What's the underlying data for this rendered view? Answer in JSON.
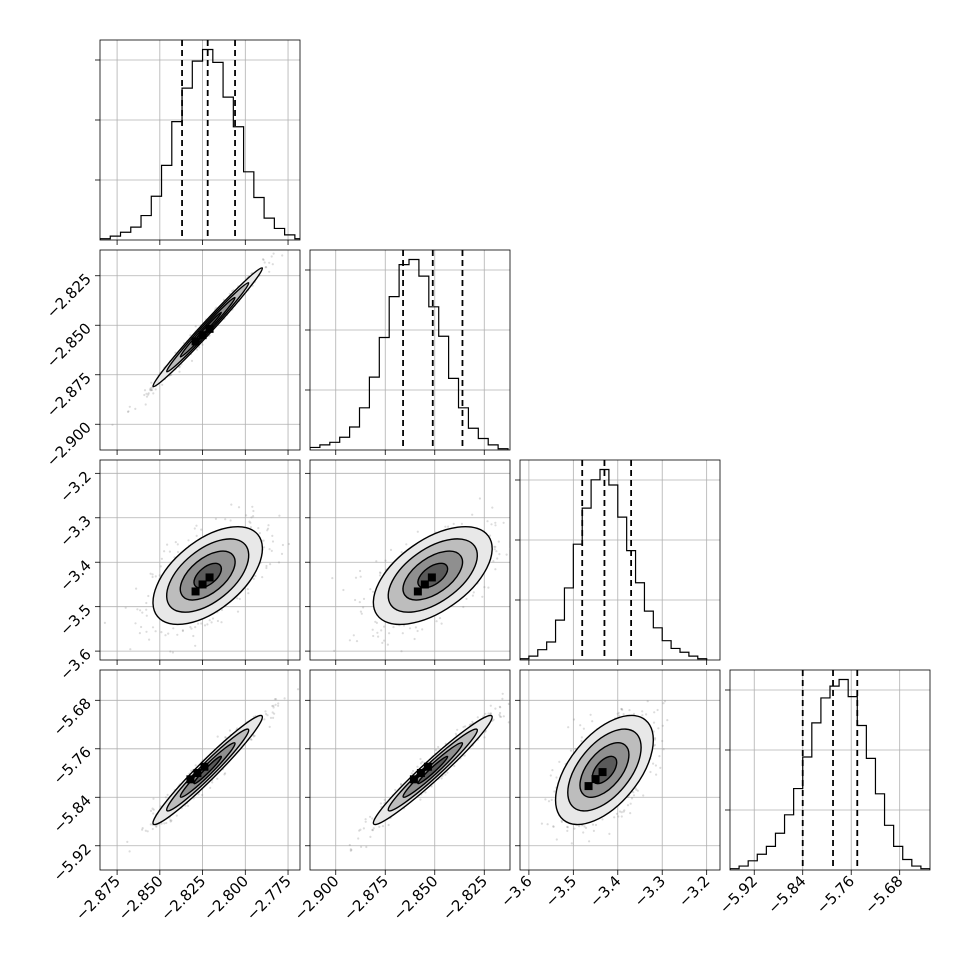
{
  "chart_data": {
    "type": "corner",
    "parameters": 4,
    "colors": {
      "line": "#000000",
      "grid": "#b0b0b0",
      "background": "#ffffff",
      "samples": "#808080"
    },
    "grid": true,
    "axes": [
      {
        "ticks": [
          "−2.875",
          "−2.850",
          "−2.825",
          "−2.800",
          "−2.775"
        ],
        "tick_values": [
          -2.875,
          -2.85,
          -2.825,
          -2.8,
          -2.775
        ],
        "range": [
          -2.885,
          -2.768
        ]
      },
      {
        "ticks": [
          "−2.900",
          "−2.875",
          "−2.850",
          "−2.825"
        ],
        "tick_values": [
          -2.9,
          -2.875,
          -2.85,
          -2.825
        ],
        "range": [
          -2.913,
          -2.812
        ]
      },
      {
        "ticks": [
          "−3.6",
          "−3.5",
          "−3.4",
          "−3.3",
          "−3.2"
        ],
        "tick_values": [
          -3.6,
          -3.5,
          -3.4,
          -3.3,
          -3.2
        ],
        "range": [
          -3.62,
          -3.17
        ]
      },
      {
        "ticks": [
          "−5.92",
          "−5.84",
          "−5.76",
          "−5.68"
        ],
        "tick_values": [
          -5.92,
          -5.84,
          -5.76,
          -5.68
        ],
        "range": [
          -5.96,
          -5.63
        ]
      }
    ],
    "histograms": [
      {
        "param": 0,
        "quantiles": [
          -2.837,
          -2.822,
          -2.806
        ],
        "bins": [
          -2.885,
          -2.879,
          -2.873,
          -2.867,
          -2.861,
          -2.855,
          -2.849,
          -2.843,
          -2.837,
          -2.831,
          -2.825,
          -2.819,
          -2.813,
          -2.807,
          -2.801,
          -2.795,
          -2.789,
          -2.783,
          -2.777,
          -2.771
        ],
        "counts": [
          1,
          3,
          6,
          10,
          19,
          34,
          58,
          92,
          118,
          139,
          148,
          138,
          111,
          88,
          53,
          33,
          17,
          9,
          4,
          1
        ]
      },
      {
        "param": 1,
        "quantiles": [
          -2.866,
          -2.851,
          -2.836
        ],
        "bins": [
          -2.913,
          -2.908,
          -2.903,
          -2.898,
          -2.893,
          -2.888,
          -2.883,
          -2.878,
          -2.873,
          -2.868,
          -2.863,
          -2.858,
          -2.853,
          -2.848,
          -2.843,
          -2.838,
          -2.833,
          -2.828,
          -2.823,
          -2.818
        ],
        "counts": [
          2,
          4,
          6,
          10,
          18,
          33,
          57,
          88,
          120,
          145,
          149,
          136,
          112,
          89,
          56,
          33,
          17,
          9,
          4,
          1
        ]
      },
      {
        "param": 2,
        "quantiles": [
          -3.48,
          -3.43,
          -3.37
        ],
        "bins": [
          -3.62,
          -3.6,
          -3.58,
          -3.56,
          -3.54,
          -3.52,
          -3.5,
          -3.48,
          -3.46,
          -3.44,
          -3.42,
          -3.4,
          -3.38,
          -3.36,
          -3.34,
          -3.32,
          -3.3,
          -3.28,
          -3.26,
          -3.24,
          -3.22
        ],
        "counts": [
          1,
          3,
          8,
          14,
          31,
          56,
          90,
          118,
          140,
          148,
          136,
          111,
          85,
          60,
          38,
          25,
          15,
          9,
          6,
          3,
          1
        ]
      },
      {
        "param": 3,
        "quantiles": [
          -5.84,
          -5.79,
          -5.75
        ],
        "bins": [
          -5.96,
          -5.945,
          -5.93,
          -5.915,
          -5.9,
          -5.885,
          -5.87,
          -5.855,
          -5.84,
          -5.825,
          -5.81,
          -5.795,
          -5.78,
          -5.765,
          -5.75,
          -5.735,
          -5.72,
          -5.705,
          -5.69,
          -5.675,
          -5.66,
          -5.645
        ],
        "counts": [
          1,
          3,
          7,
          12,
          18,
          28,
          42,
          62,
          86,
          112,
          131,
          140,
          145,
          132,
          110,
          85,
          58,
          34,
          18,
          8,
          3,
          1
        ]
      }
    ],
    "pairs": [
      {
        "x": 0,
        "y": 1,
        "mean": [
          -2.822,
          -2.851
        ],
        "sd": [
          0.016,
          0.015
        ],
        "rho": 0.99,
        "peak": [
          -2.825,
          -2.855
        ]
      },
      {
        "x": 0,
        "y": 2,
        "mean": [
          -2.822,
          -3.43
        ],
        "sd": [
          0.016,
          0.055
        ],
        "rho": 0.55,
        "peak": [
          -2.825,
          -3.45
        ]
      },
      {
        "x": 1,
        "y": 2,
        "mean": [
          -2.851,
          -3.43
        ],
        "sd": [
          0.015,
          0.055
        ],
        "rho": 0.55,
        "peak": [
          -2.855,
          -3.45
        ]
      },
      {
        "x": 0,
        "y": 3,
        "mean": [
          -2.822,
          -5.795
        ],
        "sd": [
          0.016,
          0.045
        ],
        "rho": 0.97,
        "peak": [
          -2.828,
          -5.8
        ]
      },
      {
        "x": 1,
        "y": 3,
        "mean": [
          -2.851,
          -5.795
        ],
        "sd": [
          0.015,
          0.045
        ],
        "rho": 0.97,
        "peak": [
          -2.857,
          -5.8
        ]
      },
      {
        "x": 2,
        "y": 3,
        "mean": [
          -3.43,
          -5.795
        ],
        "sd": [
          0.055,
          0.045
        ],
        "rho": 0.55,
        "peak": [
          -3.45,
          -5.81
        ]
      }
    ],
    "contour_levels": [
      "0.5",
      "1",
      "1.5",
      "2"
    ]
  }
}
